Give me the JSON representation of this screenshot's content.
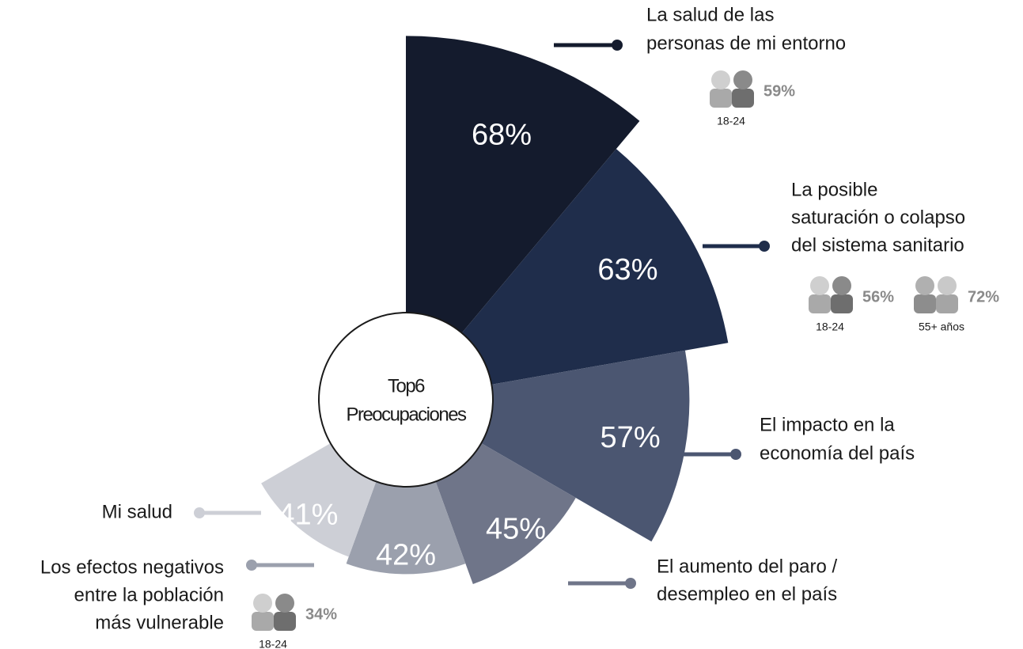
{
  "chart_data": {
    "type": "polar",
    "center_label": [
      "Top6",
      "Preocupaciones"
    ],
    "categories": [
      [
        "La salud de las",
        "personas de mi entorno"
      ],
      [
        "La posible",
        "saturación o colapso",
        "del sistema sanitario"
      ],
      [
        "El impacto en la",
        "economía del país"
      ],
      [
        "El aumento del paro /",
        "desempleo en el país"
      ],
      [
        "Los efectos negativos",
        "entre la población",
        "más vulnerable"
      ],
      [
        "Mi salud"
      ]
    ],
    "values": [
      68,
      63,
      57,
      45,
      42,
      41
    ],
    "value_labels": [
      "68%",
      "63%",
      "57%",
      "45%",
      "42%",
      "41%"
    ],
    "colors": [
      "#141b2d",
      "#1f2d4b",
      "#4b5671",
      "#6f7589",
      "#9ba0ad",
      "#cdcfd6"
    ],
    "breakdowns": [
      [
        {
          "group": "18-24",
          "value": 59,
          "value_label": "59%"
        }
      ],
      [
        {
          "group": "18-24",
          "value": 56,
          "value_label": "56%"
        },
        {
          "group": "55+ años",
          "value": 72,
          "value_label": "72%"
        }
      ],
      [],
      [],
      [
        {
          "group": "18-24",
          "value": 34,
          "value_label": "34%"
        }
      ],
      []
    ]
  }
}
